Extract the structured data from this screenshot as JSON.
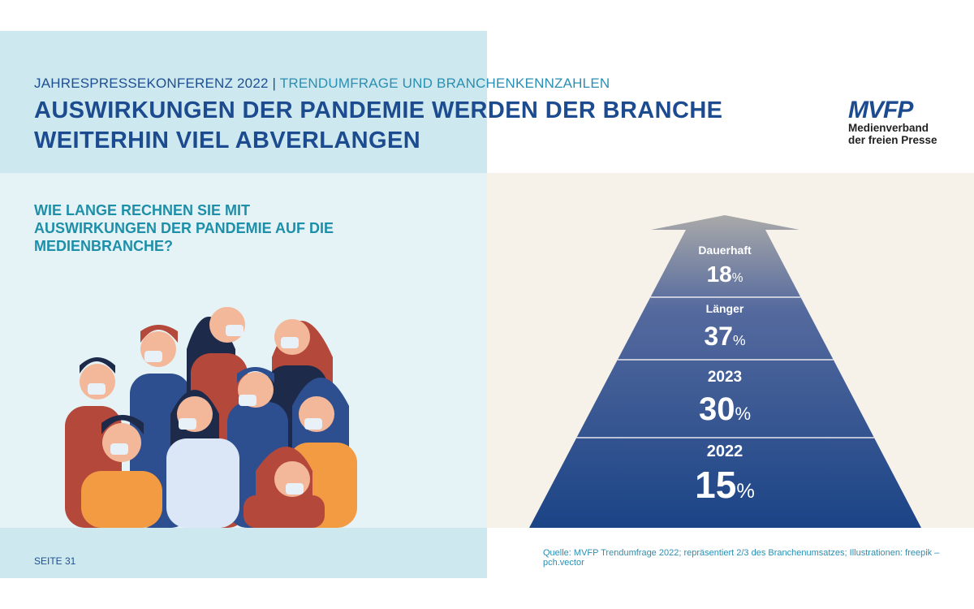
{
  "header": {
    "kicker_main": "JAHRESPRESSEKONFERENZ 2022 |",
    "kicker_accent": "TRENDUMFRAGE UND BRANCHENKENNZAHLEN",
    "title_line1": "AUSWIRKUNGEN DER PANDEMIE WERDEN DER BRANCHE",
    "title_line2": "WEITERHIN VIEL ABVERLANGEN"
  },
  "logo": {
    "text": "MVFP",
    "line1": "Medienverband",
    "line2": "der freien Presse"
  },
  "question": {
    "line1": "WIE LANGE RECHNEN SIE MIT",
    "line2": "AUSWIRKUNGEN DER PANDEMIE AUF DIE",
    "line3": "MEDIENBRANCHE?"
  },
  "footer": {
    "page": "SEITE 31",
    "source": "Quelle: MVFP Trendumfrage 2022; repräsentiert 2/3 des Branchenumsatzes; Illustrationen: freepik – pch.vector"
  },
  "chart_data": {
    "type": "pyramid",
    "categories": [
      "Dauerhaft",
      "Länger",
      "2023",
      "2022"
    ],
    "values": [
      18,
      37,
      30,
      15
    ],
    "unit": "%",
    "colors": {
      "top": "#a9a9a9",
      "bottom": "#1b4486"
    }
  }
}
